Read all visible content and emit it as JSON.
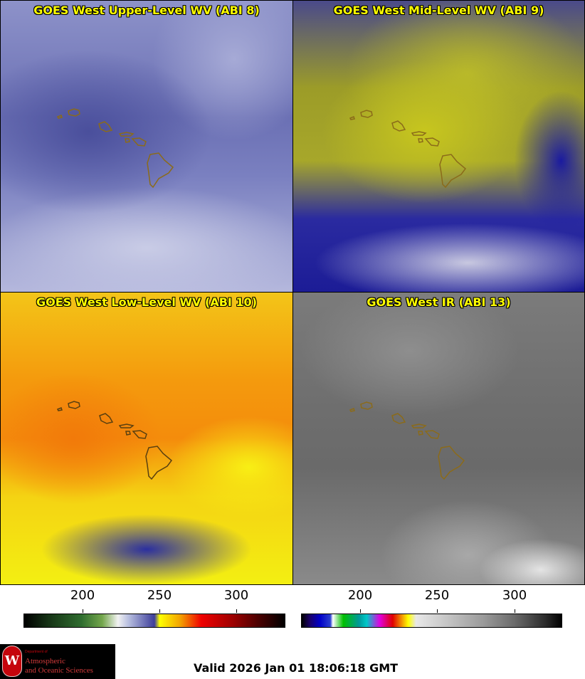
{
  "panels": [
    {
      "title": "GOES West Upper-Level WV (ABI 8)",
      "channel": "ABI 8",
      "palette": "blue-white"
    },
    {
      "title": "GOES West Mid-Level WV (ABI 9)",
      "channel": "ABI 9",
      "palette": "yellow-blue"
    },
    {
      "title": "GOES West Low-Level WV (ABI 10)",
      "channel": "ABI 10",
      "palette": "orange-yellow"
    },
    {
      "title": "GOES West IR (ABI 13)",
      "channel": "ABI 13",
      "palette": "grayscale"
    }
  ],
  "colorbars": {
    "left": {
      "ticks": [
        "200",
        "250",
        "300"
      ],
      "range": [
        163,
        333
      ]
    },
    "right": {
      "ticks": [
        "200",
        "250",
        "300"
      ],
      "range": [
        163,
        333
      ]
    }
  },
  "logo": {
    "dept": "Department of",
    "line1": "Atmospheric",
    "line2": "and Oceanic Sciences",
    "seal_letter": "W"
  },
  "footer": {
    "valid": "Valid 2026 Jan 01 18:06:18 GMT"
  },
  "colors": {
    "title_text": "#ffff00",
    "coastline": "#8b6b1a",
    "logo_red": "#c5050c"
  }
}
